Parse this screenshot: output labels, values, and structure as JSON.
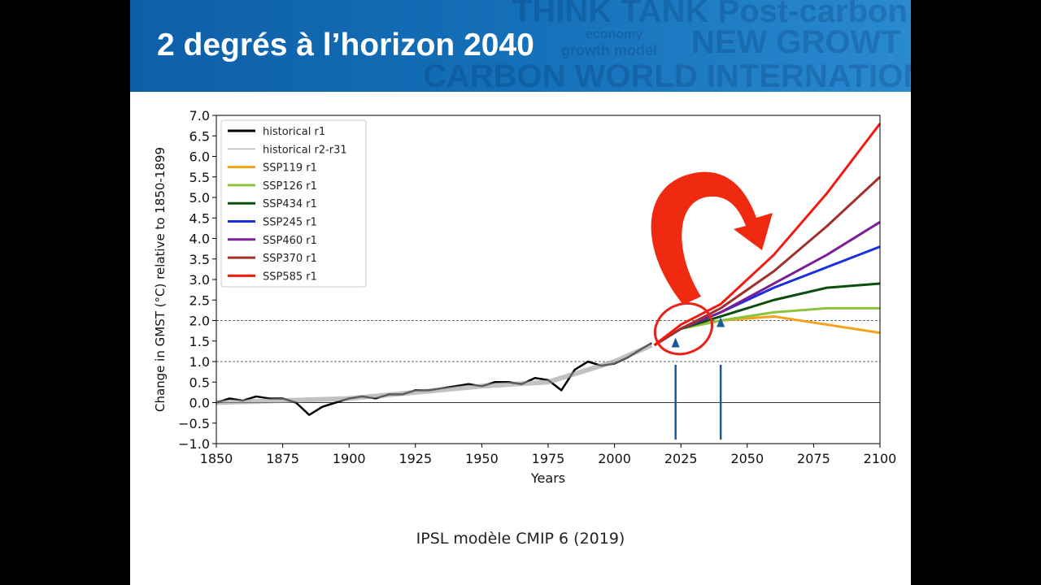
{
  "slide": {
    "title": "2 degrés à l’horizon 2040",
    "caption": "IPSL modèle CMIP 6  (2019)",
    "watermark": [
      "THINK TANK Post-carbon W",
      "economy",
      "NEW GROWT",
      "growth model",
      "CARBON WORLD INTERNATION"
    ]
  },
  "chart_data": {
    "type": "line",
    "xlabel": "Years",
    "ylabel": "Change in GMST (°C) relative to 1850-1899",
    "xlim": [
      1850,
      2100
    ],
    "ylim": [
      -1.0,
      7.0
    ],
    "xticks": [
      "1850",
      "1875",
      "1900",
      "1925",
      "1950",
      "1975",
      "2000",
      "2025",
      "2050",
      "2075",
      "2100"
    ],
    "yticks": [
      "−1.0",
      "−0.5",
      "0.0",
      "0.5",
      "1.0",
      "1.5",
      "2.0",
      "2.5",
      "3.0",
      "3.5",
      "4.0",
      "4.5",
      "5.0",
      "5.5",
      "6.0",
      "6.5",
      "7.0"
    ],
    "legend_position": "top-left",
    "reference_lines": [
      {
        "y": 0.0,
        "style": "solid"
      },
      {
        "y": 1.0,
        "style": "dashed"
      },
      {
        "y": 2.0,
        "style": "dashed"
      }
    ],
    "series": [
      {
        "name": "historical r1",
        "color": "#000000",
        "x": [
          1850,
          1855,
          1860,
          1865,
          1870,
          1875,
          1880,
          1885,
          1890,
          1895,
          1900,
          1905,
          1910,
          1915,
          1920,
          1925,
          1930,
          1935,
          1940,
          1945,
          1950,
          1955,
          1960,
          1965,
          1970,
          1975,
          1980,
          1985,
          1990,
          1995,
          2000,
          2005,
          2010,
          2014
        ],
        "y": [
          0.0,
          0.1,
          0.05,
          0.15,
          0.1,
          0.1,
          0.0,
          -0.3,
          -0.1,
          0.0,
          0.1,
          0.15,
          0.1,
          0.2,
          0.2,
          0.3,
          0.3,
          0.35,
          0.4,
          0.45,
          0.4,
          0.5,
          0.5,
          0.45,
          0.6,
          0.55,
          0.3,
          0.8,
          1.0,
          0.9,
          0.95,
          1.1,
          1.3,
          1.45
        ]
      },
      {
        "name": "historical r2-r31",
        "color": "#999999",
        "x": [
          1850,
          1875,
          1900,
          1925,
          1950,
          1975,
          1985,
          2000,
          2014
        ],
        "y": [
          0.0,
          0.05,
          0.1,
          0.25,
          0.4,
          0.5,
          0.7,
          1.0,
          1.4
        ]
      },
      {
        "name": "SSP119 r1",
        "color": "#f5a21b",
        "x": [
          2015,
          2025,
          2040,
          2060,
          2080,
          2100
        ],
        "y": [
          1.4,
          1.8,
          2.0,
          2.1,
          1.9,
          1.7
        ]
      },
      {
        "name": "SSP126 r1",
        "color": "#8cc43c",
        "x": [
          2015,
          2025,
          2040,
          2060,
          2080,
          2100
        ],
        "y": [
          1.4,
          1.8,
          2.0,
          2.2,
          2.3,
          2.3
        ]
      },
      {
        "name": "SSP434 r1",
        "color": "#0b4d0b",
        "x": [
          2015,
          2025,
          2040,
          2060,
          2080,
          2100
        ],
        "y": [
          1.4,
          1.8,
          2.1,
          2.5,
          2.8,
          2.9
        ]
      },
      {
        "name": "SSP245 r1",
        "color": "#1a2fe0",
        "x": [
          2015,
          2025,
          2040,
          2060,
          2080,
          2100
        ],
        "y": [
          1.4,
          1.8,
          2.2,
          2.8,
          3.3,
          3.8
        ]
      },
      {
        "name": "SSP460 r1",
        "color": "#7a1f9a",
        "x": [
          2015,
          2025,
          2040,
          2060,
          2080,
          2100
        ],
        "y": [
          1.4,
          1.8,
          2.2,
          2.9,
          3.6,
          4.4
        ]
      },
      {
        "name": "SSP370 r1",
        "color": "#a0302a",
        "x": [
          2015,
          2025,
          2040,
          2060,
          2080,
          2100
        ],
        "y": [
          1.4,
          1.8,
          2.3,
          3.2,
          4.3,
          5.5
        ]
      },
      {
        "name": "SSP585 r1",
        "color": "#f01a10",
        "x": [
          2015,
          2025,
          2040,
          2060,
          2080,
          2100
        ],
        "y": [
          1.4,
          1.9,
          2.4,
          3.6,
          5.1,
          6.8
        ]
      }
    ],
    "annotations": [
      {
        "type": "ellipse",
        "color": "#e8241a"
      },
      {
        "type": "curved-arrow",
        "color": "#f02a10"
      },
      {
        "type": "arrow",
        "x": 2023,
        "color": "#1b5a9a"
      },
      {
        "type": "arrow",
        "x": 2040,
        "color": "#1b5a9a"
      }
    ]
  }
}
